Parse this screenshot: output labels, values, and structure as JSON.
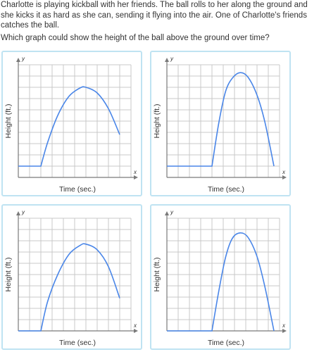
{
  "question": {
    "text": "Charlotte is playing kickball with her friends. The ball rolls to her along the ground and she kicks it as hard as she can, sending it flying into the air. One of Charlotte's friends catches the ball.",
    "prompt": "Which graph could show the height of the ball above the ground over time?"
  },
  "colors": {
    "card_border": "#bfe3f2",
    "grid": "#c8c8c8",
    "axis": "#7a7a7a",
    "curve": "#4a86e8"
  },
  "choices": [
    {
      "chart_data": {
        "type": "line",
        "xlabel": "Time (sec.)",
        "ylabel": "Height (ft.)",
        "x_axis_letter": "x",
        "y_axis_letter": "y",
        "grid": true,
        "xlim": [
          0,
          10
        ],
        "ylim": [
          0,
          10
        ],
        "x": [
          0,
          2,
          2.6,
          3.5,
          4.5,
          5.5,
          6,
          7,
          8,
          9
        ],
        "y": [
          1,
          1,
          3.1,
          5.5,
          7.2,
          7.95,
          8,
          7.5,
          6.1,
          3.8
        ]
      }
    },
    {
      "chart_data": {
        "type": "line",
        "xlabel": "Time (sec.)",
        "ylabel": "Height (ft.)",
        "x_axis_letter": "x",
        "y_axis_letter": "y",
        "grid": true,
        "xlim": [
          0,
          10
        ],
        "ylim": [
          0,
          10
        ],
        "x": [
          0,
          4,
          4.6,
          5.2,
          5.8,
          6.5,
          7.2,
          8,
          8.7,
          9.5
        ],
        "y": [
          1,
          1,
          4.8,
          7.6,
          8.8,
          9.3,
          8.9,
          7.3,
          4.9,
          1
        ]
      }
    },
    {
      "chart_data": {
        "type": "line",
        "xlabel": "Time (sec.)",
        "ylabel": "Height (ft.)",
        "x_axis_letter": "x",
        "y_axis_letter": "y",
        "grid": true,
        "xlim": [
          0,
          10
        ],
        "ylim": [
          0,
          10
        ],
        "x": [
          0,
          2,
          2.6,
          3.5,
          4.5,
          5.5,
          6,
          7,
          8,
          9
        ],
        "y": [
          0,
          0,
          2.6,
          5,
          6.8,
          7.6,
          7.7,
          7.2,
          5.7,
          2.9
        ]
      }
    },
    {
      "chart_data": {
        "type": "line",
        "xlabel": "Time (sec.)",
        "ylabel": "Height (ft.)",
        "x_axis_letter": "x",
        "y_axis_letter": "y",
        "grid": true,
        "xlim": [
          0,
          10
        ],
        "ylim": [
          0,
          10
        ],
        "x": [
          0,
          4,
          4.6,
          5.2,
          5.8,
          6.5,
          7.2,
          8,
          8.7,
          9.5
        ],
        "y": [
          0,
          0,
          3.5,
          6.5,
          8.2,
          8.7,
          8.3,
          6.6,
          3.9,
          0
        ]
      }
    }
  ]
}
